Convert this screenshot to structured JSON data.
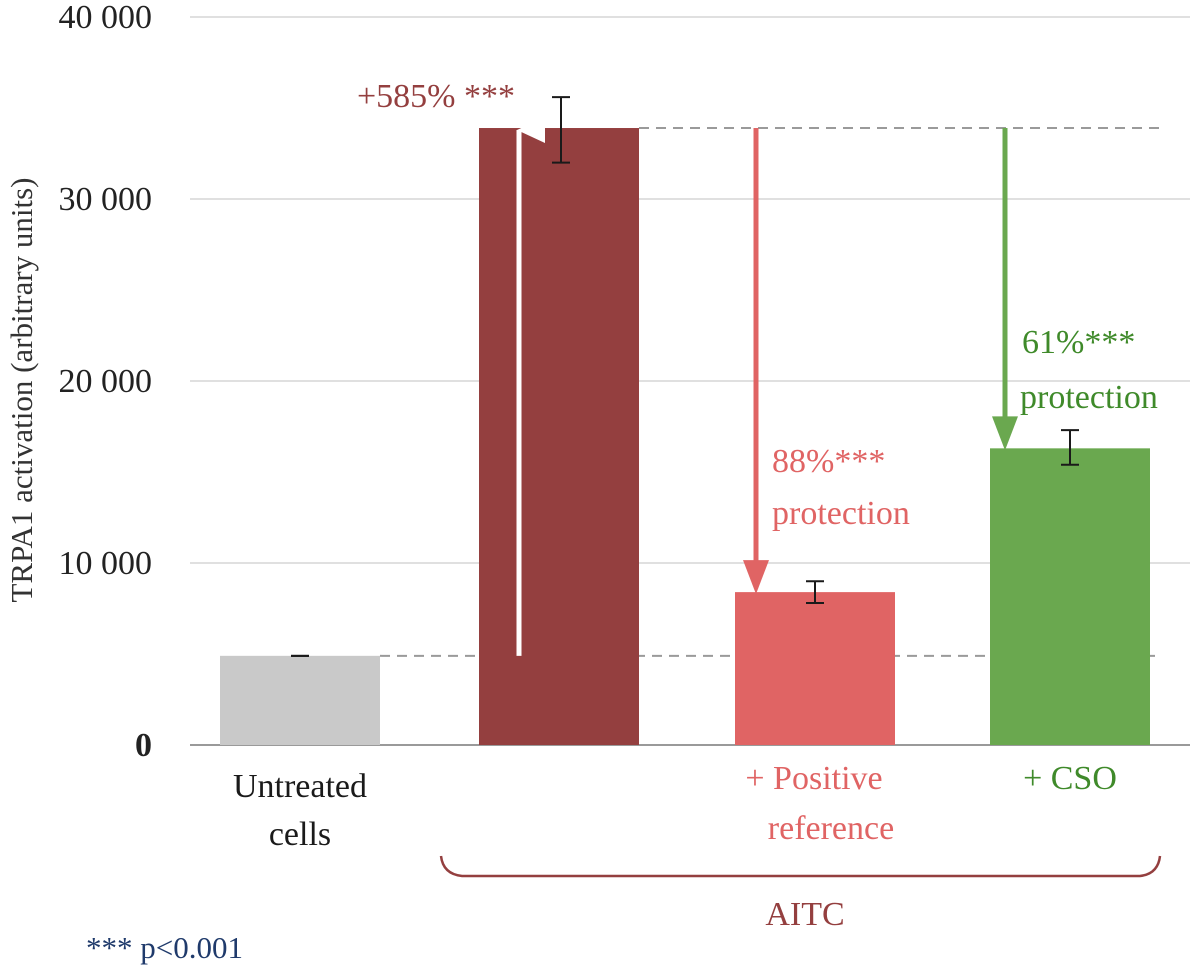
{
  "chart_data": {
    "type": "bar",
    "title": "",
    "ylabel": "TRPA1  activation (arbitrary units)",
    "ylim": [
      0,
      40000
    ],
    "y_ticks": [
      {
        "value": 0,
        "label": "0"
      },
      {
        "value": 10000,
        "label": "10 000"
      },
      {
        "value": 20000,
        "label": "20 000"
      },
      {
        "value": 30000,
        "label": "30 000"
      },
      {
        "value": 40000,
        "label": "40 000"
      }
    ],
    "categories": [
      {
        "line1": "Untreated",
        "line2": "cells"
      },
      {
        "line1": "",
        "line2": ""
      },
      {
        "line1": "+  Positive",
        "line2": "reference"
      },
      {
        "line1": "+  CSO",
        "line2": ""
      }
    ],
    "values": [
      4900,
      33900,
      8400,
      16300
    ],
    "errors": [
      [
        4900,
        4900
      ],
      [
        32000,
        35600
      ],
      [
        7800,
        9000
      ],
      [
        15400,
        17300
      ]
    ],
    "colors": [
      "#c9c9c9",
      "#943f3f",
      "#e06464",
      "#6aa84f"
    ],
    "label_colors": [
      "#1a1a1a",
      "#943f3f",
      "#e06464",
      "#3f8a2a"
    ],
    "grid": true,
    "group_label": "AITC",
    "annotations": {
      "increase": {
        "line1": "+585% ***",
        "color": "#943f3f"
      },
      "positive_reference": {
        "line1": "88%***",
        "line2": "protection",
        "color": "#e06464"
      },
      "cso": {
        "line1": "61%***",
        "line2": "protection",
        "color": "#3f8a2a"
      }
    },
    "footnote": "*** p<0.001",
    "footnote_color": "#1f3a6b"
  }
}
